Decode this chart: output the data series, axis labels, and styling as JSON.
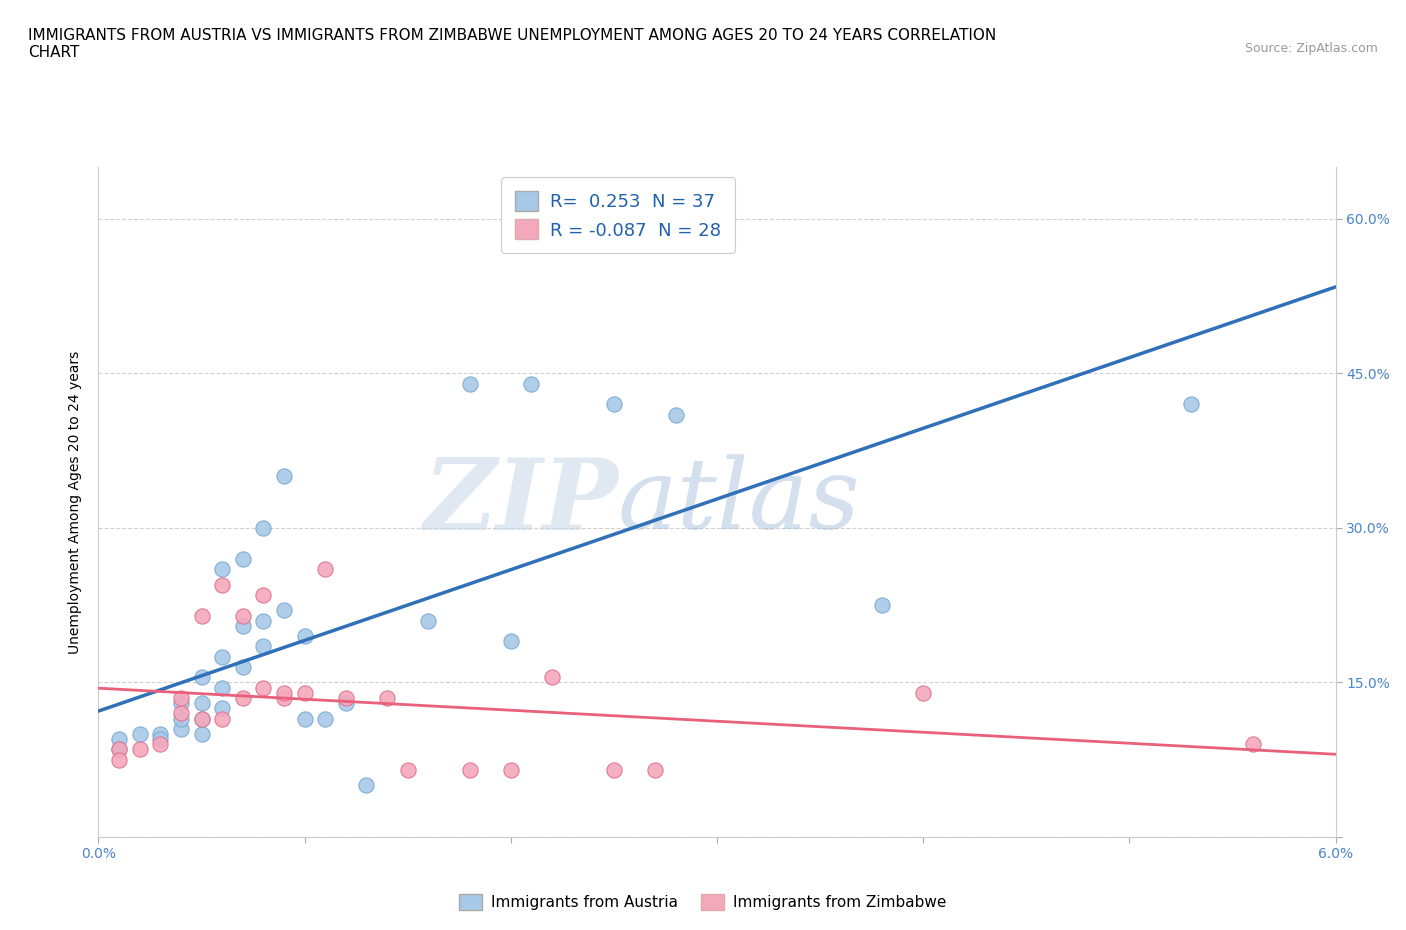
{
  "title": "IMMIGRANTS FROM AUSTRIA VS IMMIGRANTS FROM ZIMBABWE UNEMPLOYMENT AMONG AGES 20 TO 24 YEARS CORRELATION\nCHART",
  "source_text": "Source: ZipAtlas.com",
  "ylabel": "Unemployment Among Ages 20 to 24 years",
  "xlim": [
    0.0,
    0.06
  ],
  "ylim": [
    0.0,
    0.65
  ],
  "x_ticks": [
    0.0,
    0.01,
    0.02,
    0.03,
    0.04,
    0.05,
    0.06
  ],
  "x_tick_labels": [
    "0.0%",
    "",
    "",
    "",
    "",
    "",
    "6.0%"
  ],
  "y_ticks": [
    0.0,
    0.15,
    0.3,
    0.45,
    0.6
  ],
  "y_tick_labels": [
    "",
    "15.0%",
    "30.0%",
    "45.0%",
    "60.0%"
  ],
  "austria_color": "#a8c8e8",
  "zimbabwe_color": "#f4a8bc",
  "austria_line_color": "#3070b8",
  "zimbabwe_line_color": "#e8607a",
  "austria_R": 0.253,
  "austria_N": 37,
  "zimbabwe_R": -0.087,
  "zimbabwe_N": 28,
  "legend_label_austria": "Immigrants from Austria",
  "legend_label_zimbabwe": "Immigrants from Zimbabwe",
  "watermark_zip": "ZIP",
  "watermark_atlas": "atlas",
  "grid_color": "#cccccc",
  "background_color": "#ffffff",
  "title_fontsize": 11,
  "label_fontsize": 10,
  "tick_fontsize": 10,
  "austria_scatter_x": [
    0.001,
    0.001,
    0.002,
    0.003,
    0.003,
    0.004,
    0.004,
    0.004,
    0.005,
    0.005,
    0.005,
    0.005,
    0.006,
    0.006,
    0.006,
    0.006,
    0.007,
    0.007,
    0.007,
    0.008,
    0.008,
    0.008,
    0.009,
    0.009,
    0.01,
    0.01,
    0.011,
    0.012,
    0.013,
    0.016,
    0.018,
    0.02,
    0.021,
    0.025,
    0.028,
    0.038,
    0.053
  ],
  "austria_scatter_y": [
    0.095,
    0.085,
    0.1,
    0.1,
    0.095,
    0.105,
    0.115,
    0.13,
    0.1,
    0.115,
    0.13,
    0.155,
    0.125,
    0.145,
    0.175,
    0.26,
    0.165,
    0.205,
    0.27,
    0.185,
    0.21,
    0.3,
    0.22,
    0.35,
    0.195,
    0.115,
    0.115,
    0.13,
    0.05,
    0.21,
    0.44,
    0.19,
    0.44,
    0.42,
    0.41,
    0.225,
    0.42
  ],
  "zimbabwe_scatter_x": [
    0.001,
    0.001,
    0.002,
    0.003,
    0.004,
    0.004,
    0.005,
    0.005,
    0.006,
    0.006,
    0.007,
    0.007,
    0.008,
    0.008,
    0.009,
    0.009,
    0.01,
    0.011,
    0.012,
    0.014,
    0.015,
    0.018,
    0.02,
    0.022,
    0.025,
    0.027,
    0.04,
    0.056
  ],
  "zimbabwe_scatter_y": [
    0.085,
    0.075,
    0.085,
    0.09,
    0.12,
    0.135,
    0.115,
    0.215,
    0.115,
    0.245,
    0.135,
    0.215,
    0.145,
    0.235,
    0.135,
    0.14,
    0.14,
    0.26,
    0.135,
    0.135,
    0.065,
    0.065,
    0.065,
    0.155,
    0.065,
    0.065,
    0.14,
    0.09
  ]
}
